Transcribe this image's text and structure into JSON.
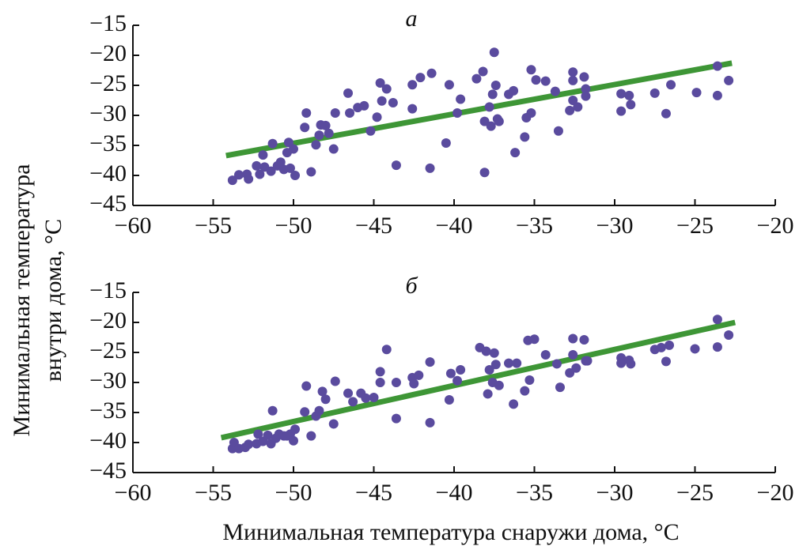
{
  "chart_data": [
    {
      "type": "scatter",
      "title": "а",
      "ylabel": [
        "Минимальная температура",
        "внутри дома, °C"
      ],
      "xlim": [
        -60,
        -20
      ],
      "ylim": [
        -45,
        -15
      ],
      "xticks": [
        {
          "value": -60,
          "label": "−60"
        },
        {
          "value": -55,
          "label": "−55"
        },
        {
          "value": -50,
          "label": "−50"
        },
        {
          "value": -45,
          "label": "−45"
        },
        {
          "value": -40,
          "label": "−40"
        },
        {
          "value": -35,
          "label": "−35"
        },
        {
          "value": -30,
          "label": "−30"
        },
        {
          "value": -25,
          "label": "−25"
        },
        {
          "value": -20,
          "label": "−20"
        }
      ],
      "yticks": [
        {
          "value": -45,
          "label": "−45"
        },
        {
          "value": -40,
          "label": "−40"
        },
        {
          "value": -35,
          "label": "−35"
        },
        {
          "value": -30,
          "label": "−30"
        },
        {
          "value": -25,
          "label": "−25"
        },
        {
          "value": -20,
          "label": "−20"
        },
        {
          "value": -15,
          "label": "−15"
        }
      ],
      "color": "#5a4b9e",
      "fit_color": "#3e9636",
      "points": {
        "x": [
          -53.8,
          -53.4,
          -52.9,
          -52.8,
          -52.3,
          -52.1,
          -51.8,
          -51.9,
          -51.4,
          -51.3,
          -51.0,
          -50.8,
          -50.6,
          -50.4,
          -50.3,
          -50.2,
          -50.0,
          -49.9,
          -49.3,
          -49.2,
          -48.9,
          -48.6,
          -48.4,
          -48.3,
          -48.0,
          -47.8,
          -47.5,
          -47.4,
          -46.6,
          -46.5,
          -46.0,
          -45.6,
          -45.2,
          -44.8,
          -44.6,
          -44.5,
          -44.2,
          -43.8,
          -43.6,
          -42.6,
          -42.6,
          -42.1,
          -41.5,
          -41.4,
          -40.5,
          -40.3,
          -39.8,
          -39.6,
          -38.6,
          -38.2,
          -38.1,
          -38.1,
          -37.8,
          -37.7,
          -37.6,
          -37.5,
          -37.4,
          -37.3,
          -37.2,
          -36.6,
          -36.3,
          -36.2,
          -35.6,
          -35.5,
          -35.2,
          -35.2,
          -34.9,
          -34.3,
          -33.7,
          -33.5,
          -32.8,
          -32.6,
          -32.6,
          -32.6,
          -32.3,
          -31.9,
          -31.8,
          -31.8,
          -29.6,
          -29.6,
          -29.1,
          -29.0,
          -27.5,
          -26.8,
          -26.5,
          -24.9,
          -23.6,
          -23.6,
          -22.9
        ],
        "y": [
          -40.8,
          -39.9,
          -39.8,
          -40.6,
          -38.4,
          -39.8,
          -38.6,
          -36.6,
          -39.3,
          -34.7,
          -38.4,
          -37.8,
          -39.0,
          -36.2,
          -34.5,
          -38.8,
          -35.6,
          -40.0,
          -32.0,
          -29.6,
          -39.4,
          -34.9,
          -33.3,
          -31.6,
          -31.7,
          -33.0,
          -35.6,
          -29.6,
          -26.3,
          -29.6,
          -28.7,
          -28.4,
          -32.6,
          -30.3,
          -24.6,
          -27.6,
          -25.6,
          -27.9,
          -38.3,
          -24.9,
          -28.9,
          -23.7,
          -38.8,
          -23.0,
          -34.6,
          -24.9,
          -29.6,
          -27.3,
          -23.9,
          -22.7,
          -31.0,
          -39.5,
          -28.6,
          -31.8,
          -26.5,
          -19.5,
          -25.0,
          -30.6,
          -31.0,
          -26.5,
          -25.9,
          -36.2,
          -33.6,
          -30.4,
          -29.6,
          -22.4,
          -24.1,
          -24.3,
          -26.0,
          -32.6,
          -29.2,
          -22.8,
          -24.2,
          -27.5,
          -28.6,
          -23.6,
          -25.6,
          -26.8,
          -26.4,
          -29.3,
          -26.7,
          -28.2,
          -26.3,
          -29.7,
          -24.9,
          -26.2,
          -21.8,
          -26.7,
          -24.2
        ]
      },
      "fit": {
        "x": [
          -54.2,
          -22.7
        ],
        "y": [
          -36.7,
          -21.3
        ]
      }
    },
    {
      "type": "scatter",
      "title": "б",
      "xlabel": "Минимальная температура снаружи дома, °C",
      "xlim": [
        -60,
        -20
      ],
      "ylim": [
        -45,
        -15
      ],
      "xticks": [
        {
          "value": -60,
          "label": "−60"
        },
        {
          "value": -55,
          "label": "−55"
        },
        {
          "value": -50,
          "label": "−50"
        },
        {
          "value": -45,
          "label": "−45"
        },
        {
          "value": -40,
          "label": "−40"
        },
        {
          "value": -35,
          "label": "−35"
        },
        {
          "value": -30,
          "label": "−30"
        },
        {
          "value": -25,
          "label": "−25"
        },
        {
          "value": -20,
          "label": "−20"
        }
      ],
      "yticks": [
        {
          "value": -45,
          "label": "−45"
        },
        {
          "value": -40,
          "label": "−40"
        },
        {
          "value": -35,
          "label": "−35"
        },
        {
          "value": -30,
          "label": "−30"
        },
        {
          "value": -25,
          "label": "−25"
        },
        {
          "value": -20,
          "label": "−20"
        },
        {
          "value": -15,
          "label": "−15"
        }
      ],
      "color": "#5a4b9e",
      "fit_color": "#3e9636",
      "points": {
        "x": [
          -53.8,
          -53.7,
          -53.4,
          -53.0,
          -52.8,
          -52.3,
          -52.2,
          -51.9,
          -51.6,
          -51.4,
          -51.3,
          -51.1,
          -50.9,
          -50.6,
          -50.4,
          -50.2,
          -50.0,
          -49.9,
          -49.3,
          -49.2,
          -48.9,
          -48.6,
          -48.4,
          -48.2,
          -48.0,
          -47.5,
          -47.4,
          -46.6,
          -46.3,
          -45.8,
          -45.5,
          -45.0,
          -44.6,
          -44.6,
          -44.2,
          -43.6,
          -43.6,
          -42.6,
          -42.5,
          -42.2,
          -41.5,
          -41.5,
          -40.3,
          -40.2,
          -39.8,
          -39.6,
          -38.4,
          -38.0,
          -37.9,
          -37.8,
          -37.6,
          -37.5,
          -37.4,
          -37.2,
          -36.6,
          -36.3,
          -36.1,
          -35.6,
          -35.3,
          -35.4,
          -35.0,
          -34.3,
          -33.6,
          -33.4,
          -32.8,
          -32.6,
          -32.6,
          -32.4,
          -31.9,
          -31.8,
          -31.7,
          -29.6,
          -29.6,
          -29.1,
          -29.0,
          -27.5,
          -27.1,
          -26.8,
          -26.6,
          -25.0,
          -23.6,
          -23.6,
          -22.9
        ],
        "y": [
          -41.0,
          -40.0,
          -41.0,
          -40.8,
          -40.3,
          -40.2,
          -38.6,
          -39.8,
          -38.8,
          -40.2,
          -34.7,
          -39.3,
          -38.6,
          -38.9,
          -38.9,
          -38.6,
          -39.7,
          -37.8,
          -34.9,
          -30.6,
          -38.9,
          -35.6,
          -34.7,
          -31.5,
          -32.8,
          -36.9,
          -29.8,
          -31.8,
          -33.2,
          -31.8,
          -32.6,
          -32.5,
          -28.2,
          -30.0,
          -24.5,
          -36.0,
          -30.0,
          -29.2,
          -30.2,
          -28.8,
          -26.6,
          -36.7,
          -32.9,
          -28.5,
          -29.7,
          -27.9,
          -24.2,
          -24.8,
          -31.9,
          -27.9,
          -30.0,
          -25.1,
          -27.0,
          -30.5,
          -26.8,
          -33.6,
          -26.8,
          -31.4,
          -29.6,
          -23.0,
          -22.8,
          -25.4,
          -26.9,
          -30.8,
          -28.4,
          -22.7,
          -25.4,
          -27.6,
          -22.9,
          -26.4,
          -26.4,
          -25.9,
          -26.8,
          -26.3,
          -26.9,
          -24.5,
          -24.2,
          -26.5,
          -23.8,
          -24.4,
          -19.5,
          -24.1,
          -22.1
        ]
      },
      "fit": {
        "x": [
          -54.5,
          -22.5
        ],
        "y": [
          -39.2,
          -20.0
        ]
      }
    }
  ]
}
